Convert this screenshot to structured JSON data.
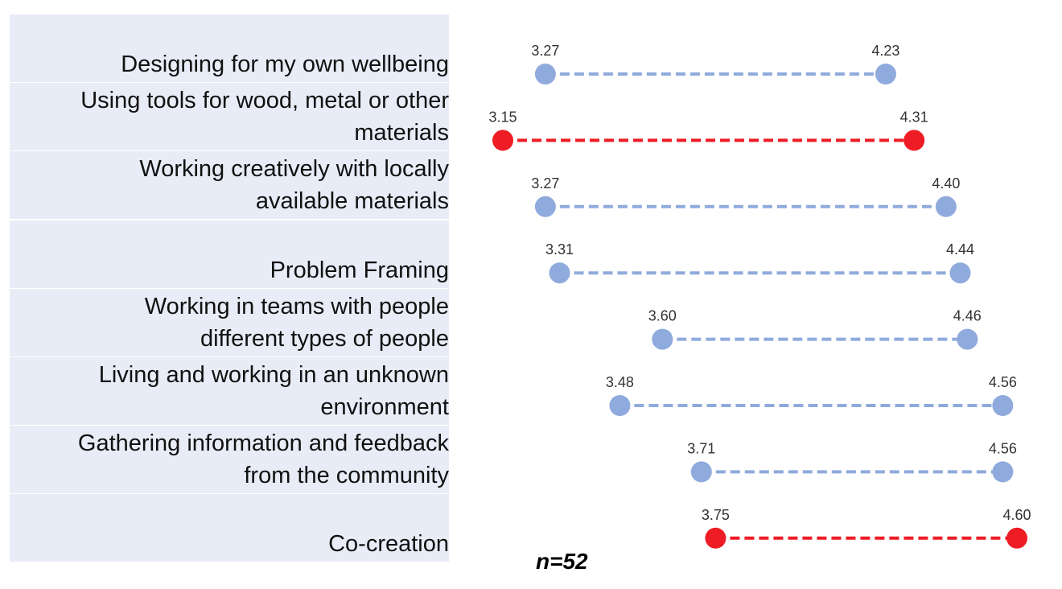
{
  "chart_data": {
    "type": "dumbbell",
    "colors": {
      "default": "#8faadc",
      "highlight": "#ee1c25"
    },
    "rows": [
      {
        "label_lines": [
          "Designing for my own wellbeing"
        ],
        "low": 3.27,
        "high": 4.23,
        "low_label": "3.27",
        "high_label": "4.23",
        "highlight": false
      },
      {
        "label_lines": [
          "Using tools for wood, metal or other",
          "materials"
        ],
        "low": 3.15,
        "high": 4.31,
        "low_label": "3.15",
        "high_label": "4.31",
        "highlight": true
      },
      {
        "label_lines": [
          "Working creatively with locally",
          "available materials"
        ],
        "low": 3.27,
        "high": 4.4,
        "low_label": "3.27",
        "high_label": "4.40",
        "highlight": false
      },
      {
        "label_lines": [
          "Problem Framing"
        ],
        "low": 3.31,
        "high": 4.44,
        "low_label": "3.31",
        "high_label": "4.44",
        "highlight": false
      },
      {
        "label_lines": [
          "Working in teams with people",
          "different types of people"
        ],
        "low": 3.6,
        "high": 4.46,
        "low_label": "3.60",
        "high_label": "4.46",
        "highlight": false
      },
      {
        "label_lines": [
          "Living and working in an unknown",
          "environment"
        ],
        "low": 3.48,
        "high": 4.56,
        "low_label": "3.48",
        "high_label": "4.56",
        "highlight": false
      },
      {
        "label_lines": [
          "Gathering information and feedback",
          "from the community"
        ],
        "low": 3.71,
        "high": 4.56,
        "low_label": "3.71",
        "high_label": "4.56",
        "highlight": false
      },
      {
        "label_lines": [
          "Co-creation"
        ],
        "low": 3.75,
        "high": 4.6,
        "low_label": "3.75",
        "high_label": "4.60",
        "highlight": true
      }
    ],
    "note": "n=52"
  }
}
